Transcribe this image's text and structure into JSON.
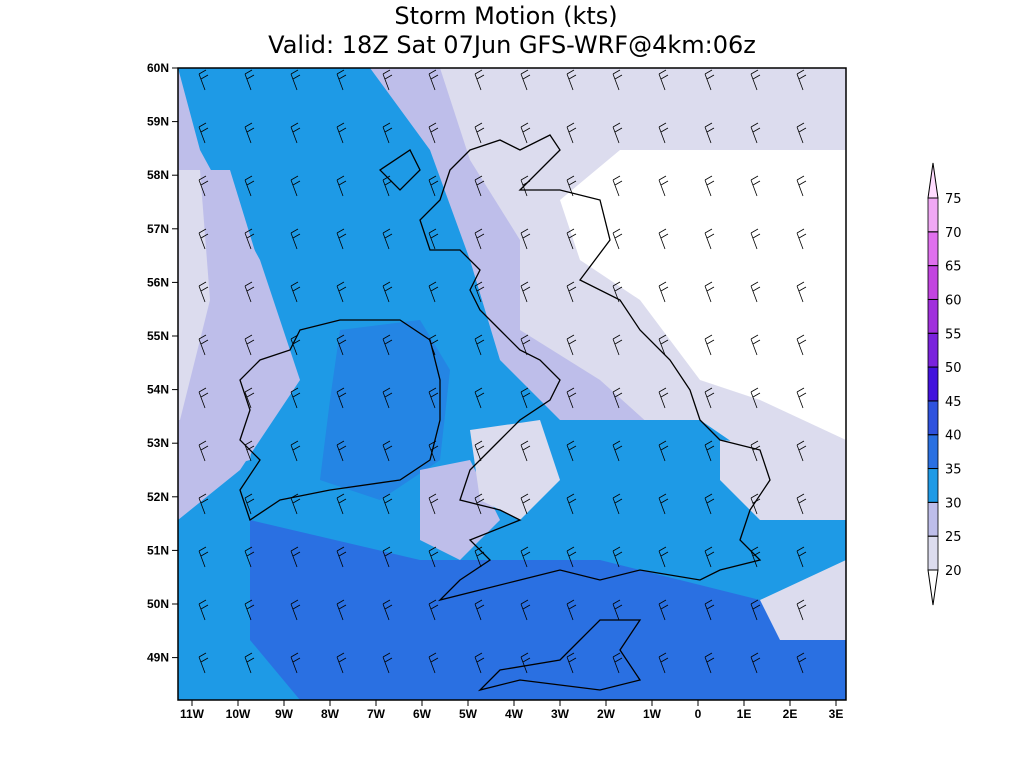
{
  "title": "Storm Motion (kts)",
  "subtitle": "Valid: 18Z Sat 07Jun GFS-WRF@4km:06z",
  "map": {
    "lat_labels": [
      "60N",
      "59N",
      "58N",
      "57N",
      "56N",
      "55N",
      "54N",
      "53N",
      "52N",
      "51N",
      "50N",
      "49N"
    ],
    "lon_labels": [
      "11W",
      "10W",
      "9W",
      "8W",
      "7W",
      "6W",
      "5W",
      "4W",
      "3W",
      "2W",
      "1W",
      "0",
      "1E",
      "2E",
      "3E"
    ]
  },
  "colorbar": {
    "levels": [
      20,
      25,
      30,
      35,
      40,
      45,
      50,
      55,
      60,
      65,
      70,
      75
    ],
    "colors": [
      "#ffffff",
      "#dcdcee",
      "#bebeea",
      "#1e9ae6",
      "#2a70e2",
      "#2f52de",
      "#4212dc",
      "#7a22dc",
      "#a030dc",
      "#c244e0",
      "#e070ee",
      "#f0a8f4",
      "#ffdcff"
    ]
  }
}
